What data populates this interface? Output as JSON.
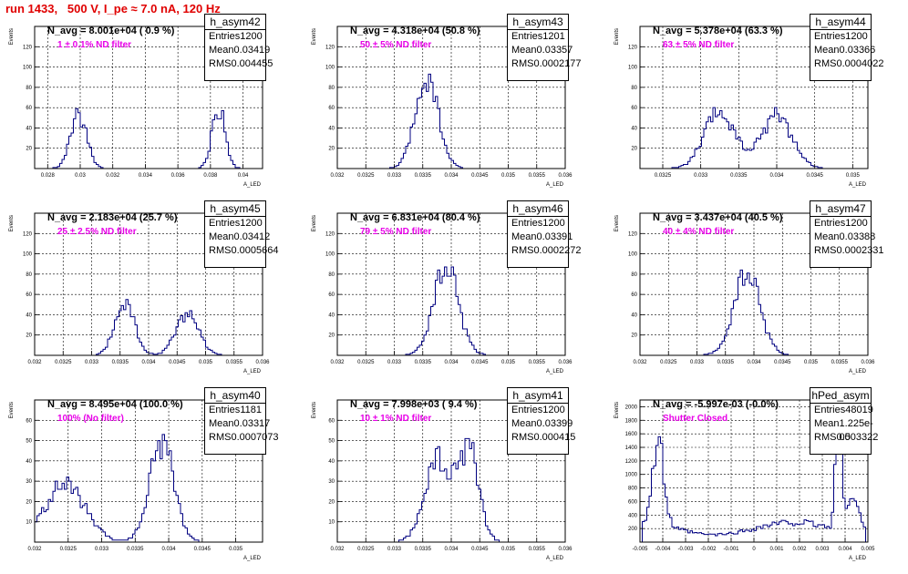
{
  "title": "run 1433,   500 V, I_pe ≈ 7.0 nA, 120 Hz",
  "chart_data": [
    {
      "type": "bar",
      "name": "h_asym42",
      "navg": "N_avg = 8.001e+04 ( 0.9 %)",
      "filter": "1 ± 0.1% ND filter",
      "entries": "1200",
      "mean": "0.03419",
      "rms": "0.004455",
      "xlim": [
        0.0272,
        0.0412
      ],
      "ylim": [
        0,
        140
      ],
      "xticks": [
        "0.028",
        "0.03",
        "0.032",
        "0.034",
        "0.036",
        "0.038",
        "0.04"
      ],
      "xtickvals": [
        0.028,
        0.03,
        0.032,
        0.034,
        0.036,
        0.038,
        0.04
      ],
      "yticks": [
        "20",
        "40",
        "60",
        "80",
        "100",
        "120"
      ],
      "ytickvals": [
        20,
        40,
        60,
        80,
        100,
        120
      ],
      "xlabel": "A_LED",
      "ylabel": "Events",
      "peaks": [
        [
          0.0299,
          0.0005,
          52,
          0
        ],
        [
          0.0385,
          0.0004,
          60,
          -7
        ]
      ]
    },
    {
      "type": "bar",
      "name": "h_asym43",
      "navg": "N_avg = 4.318e+04 (50.8 %)",
      "filter": "50 ± 5% ND filter",
      "entries": "1201",
      "mean": "0.03357",
      "rms": "0.0002177",
      "xlim": [
        0.032,
        0.036
      ],
      "ylim": [
        0,
        140
      ],
      "xticks": [
        "0.032",
        "0.0325",
        "0.033",
        "0.0335",
        "0.034",
        "0.0345",
        "0.035",
        "0.0355",
        "0.036"
      ],
      "xtickvals": [
        0.032,
        0.0325,
        0.033,
        0.0335,
        0.034,
        0.0345,
        0.035,
        0.0355,
        0.036
      ],
      "yticks": [
        "20",
        "40",
        "60",
        "80",
        "100",
        "120"
      ],
      "ytickvals": [
        20,
        40,
        60,
        80,
        100,
        120
      ],
      "xlabel": "A_LED",
      "ylabel": "Events",
      "peaks": [
        [
          0.03357,
          0.0002,
          88,
          3
        ]
      ]
    },
    {
      "type": "bar",
      "name": "h_asym44",
      "navg": "N_avg = 5.378e+04 (63.3 %)",
      "filter": "63 ± 5% ND filter",
      "entries": "1200",
      "mean": "0.03366",
      "rms": "0.0004022",
      "xlim": [
        0.0322,
        0.0352
      ],
      "ylim": [
        0,
        140
      ],
      "xticks": [
        "0.0325",
        "0.033",
        "0.0335",
        "0.034",
        "0.0345",
        "0.035"
      ],
      "xtickvals": [
        0.0325,
        0.033,
        0.0335,
        0.034,
        0.0345,
        0.035
      ],
      "yticks": [
        "20",
        "40",
        "60",
        "80",
        "100",
        "120"
      ],
      "ytickvals": [
        20,
        40,
        60,
        80,
        100,
        120
      ],
      "xlabel": "A_LED",
      "ylabel": "Events",
      "peaks": [
        [
          0.03325,
          0.0002,
          55,
          5
        ],
        [
          0.034,
          0.0002,
          53,
          11
        ]
      ]
    },
    {
      "type": "bar",
      "name": "h_asym45",
      "navg": "N_avg = 2.183e+04 (25.7 %)",
      "filter": "25 ± 2.5% ND filter",
      "entries": "1200",
      "mean": "0.03412",
      "rms": "0.0005664",
      "xlim": [
        0.032,
        0.036
      ],
      "ylim": [
        0,
        140
      ],
      "xticks": [
        "0.032",
        "0.0325",
        "0.033",
        "0.0335",
        "0.034",
        "0.0345",
        "0.035",
        "0.0355",
        "0.036"
      ],
      "xtickvals": [
        0.032,
        0.0325,
        0.033,
        0.0335,
        0.034,
        0.0345,
        0.035,
        0.0355,
        0.036
      ],
      "yticks": [
        "20",
        "40",
        "60",
        "80",
        "100",
        "120"
      ],
      "ytickvals": [
        20,
        40,
        60,
        80,
        100,
        120
      ],
      "xlabel": "A_LED",
      "ylabel": "Events",
      "peaks": [
        [
          0.03358,
          0.00017,
          52,
          21
        ],
        [
          0.03468,
          0.0002,
          42,
          13
        ]
      ]
    },
    {
      "type": "bar",
      "name": "h_asym46",
      "navg": "N_avg = 6.831e+04 (80.4 %)",
      "filter": "79 ± 5% ND filter",
      "entries": "1200",
      "mean": "0.03391",
      "rms": "0.0002272",
      "xlim": [
        0.032,
        0.036
      ],
      "ylim": [
        0,
        140
      ],
      "xticks": [
        "0.032",
        "0.0325",
        "0.033",
        "0.0335",
        "0.034",
        "0.0345",
        "0.035",
        "0.0355",
        "0.036"
      ],
      "xtickvals": [
        0.032,
        0.0325,
        0.033,
        0.0335,
        0.034,
        0.0345,
        0.035,
        0.0355,
        0.036
      ],
      "yticks": [
        "20",
        "40",
        "60",
        "80",
        "100",
        "120"
      ],
      "ytickvals": [
        20,
        40,
        60,
        80,
        100,
        120
      ],
      "xlabel": "A_LED",
      "ylabel": "Events",
      "peaks": [
        [
          0.03391,
          0.00022,
          86,
          29
        ]
      ]
    },
    {
      "type": "bar",
      "name": "h_asym47",
      "navg": "N_avg = 3.437e+04 (40.5 %)",
      "filter": "40 ± 4% ND filter",
      "entries": "1200",
      "mean": "0.03388",
      "rms": "0.0002331",
      "xlim": [
        0.032,
        0.036
      ],
      "ylim": [
        0,
        140
      ],
      "xticks": [
        "0.032",
        "0.0325",
        "0.033",
        "0.0335",
        "0.034",
        "0.0345",
        "0.035",
        "0.0355",
        "0.036"
      ],
      "xtickvals": [
        0.032,
        0.0325,
        0.033,
        0.0335,
        0.034,
        0.0345,
        0.035,
        0.0355,
        0.036
      ],
      "yticks": [
        "20",
        "40",
        "60",
        "80",
        "100",
        "120"
      ],
      "ytickvals": [
        20,
        40,
        60,
        80,
        100,
        120
      ],
      "xlabel": "A_LED",
      "ylabel": "Events",
      "peaks": [
        [
          0.03388,
          0.00023,
          80,
          17
        ]
      ]
    },
    {
      "type": "bar",
      "name": "h_asym40",
      "navg": "N_avg = 8.495e+04 (100.0 %)",
      "filter": "100% (No filter)",
      "entries": "1181",
      "mean": "0.03317",
      "rms": "0.0007073",
      "xlim": [
        0.032,
        0.0354
      ],
      "ylim": [
        0,
        70
      ],
      "xticks": [
        "0.032",
        "0.0325",
        "0.033",
        "0.0335",
        "0.034",
        "0.0345",
        "0.035"
      ],
      "xtickvals": [
        0.032,
        0.0325,
        0.033,
        0.0335,
        0.034,
        0.0345,
        0.035
      ],
      "yticks": [
        "10",
        "20",
        "30",
        "40",
        "50",
        "60"
      ],
      "ytickvals": [
        10,
        20,
        30,
        40,
        50,
        60
      ],
      "xlabel": "A_LED",
      "ylabel": "Events",
      "peaks": [
        [
          0.03245,
          0.0003,
          28,
          33
        ],
        [
          0.0339,
          0.00018,
          50,
          37
        ]
      ]
    },
    {
      "type": "bar",
      "name": "h_asym41",
      "navg": "N_avg = 7.998e+03 ( 9.4 %)",
      "filter": "10 ± 1% ND filter",
      "entries": "1200",
      "mean": "0.03399",
      "rms": "0.000415",
      "xlim": [
        0.032,
        0.036
      ],
      "ylim": [
        0,
        70
      ],
      "xticks": [
        "0.032",
        "0.0325",
        "0.033",
        "0.0335",
        "0.034",
        "0.0345",
        "0.035",
        "0.0355",
        "0.036"
      ],
      "xtickvals": [
        0.032,
        0.0325,
        0.033,
        0.0335,
        0.034,
        0.0345,
        0.035,
        0.0355,
        0.036
      ],
      "yticks": [
        "10",
        "20",
        "30",
        "40",
        "50",
        "60"
      ],
      "ytickvals": [
        10,
        20,
        30,
        40,
        50,
        60
      ],
      "xlabel": "A_LED",
      "ylabel": "Events",
      "peaks": [
        [
          0.03375,
          0.00022,
          40,
          41
        ],
        [
          0.0343,
          0.00018,
          47,
          43
        ]
      ]
    },
    {
      "type": "bar",
      "name": "hPed_asym",
      "navg": "N_avg = -5.997e-03 (-0.0%)",
      "filter": "Shutter Closed",
      "entries": "48019",
      "mean": "1.225e-05",
      "rms": "0.003322",
      "xlim": [
        -0.005,
        0.005
      ],
      "ylim": [
        0,
        2100
      ],
      "xticks": [
        "-0.005",
        "-0.004",
        "-0.003",
        "-0.002",
        "-0.001",
        "0",
        "0.001",
        "0.002",
        "0.003",
        "0.004",
        "0.005"
      ],
      "xtickvals": [
        -0.005,
        -0.004,
        -0.003,
        -0.002,
        -0.001,
        0,
        0.001,
        0.002,
        0.003,
        0.004,
        0.005
      ],
      "yticks": [
        "200",
        "400",
        "600",
        "800",
        "1000",
        "1200",
        "1400",
        "1600",
        "1800",
        "2000"
      ],
      "ytickvals": [
        200,
        400,
        600,
        800,
        1000,
        1200,
        1400,
        1600,
        1800,
        2000
      ],
      "xlabel": "A_LED",
      "ylabel": "Events",
      "ped": true
    }
  ]
}
